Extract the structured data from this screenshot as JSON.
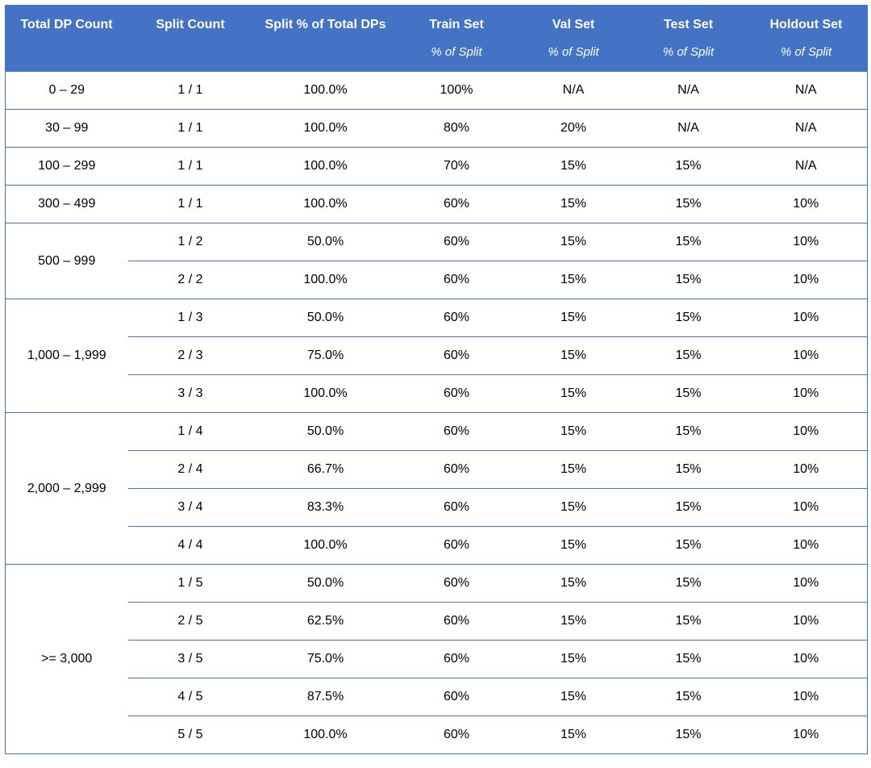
{
  "columns": [
    {
      "title": "Total DP Count",
      "sub": ""
    },
    {
      "title": "Split Count",
      "sub": ""
    },
    {
      "title": "Split % of Total DPs",
      "sub": ""
    },
    {
      "title": "Train Set",
      "sub": "% of Split"
    },
    {
      "title": "Val Set",
      "sub": "% of Split"
    },
    {
      "title": "Test Set",
      "sub": "% of Split"
    },
    {
      "title": "Holdout Set",
      "sub": "% of Split"
    }
  ],
  "groups": [
    {
      "range": "0 – 29",
      "rows": [
        {
          "split": "1 / 1",
          "pct": "100.0%",
          "train": "100%",
          "val": "N/A",
          "test": "N/A",
          "holdout": "N/A"
        }
      ]
    },
    {
      "range": "30 – 99",
      "rows": [
        {
          "split": "1 / 1",
          "pct": "100.0%",
          "train": "80%",
          "val": "20%",
          "test": "N/A",
          "holdout": "N/A"
        }
      ]
    },
    {
      "range": "100 – 299",
      "rows": [
        {
          "split": "1 / 1",
          "pct": "100.0%",
          "train": "70%",
          "val": "15%",
          "test": "15%",
          "holdout": "N/A"
        }
      ]
    },
    {
      "range": "300 – 499",
      "rows": [
        {
          "split": "1 / 1",
          "pct": "100.0%",
          "train": "60%",
          "val": "15%",
          "test": "15%",
          "holdout": "10%"
        }
      ]
    },
    {
      "range": "500 – 999",
      "rows": [
        {
          "split": "1 / 2",
          "pct": "50.0%",
          "train": "60%",
          "val": "15%",
          "test": "15%",
          "holdout": "10%"
        },
        {
          "split": "2 / 2",
          "pct": "100.0%",
          "train": "60%",
          "val": "15%",
          "test": "15%",
          "holdout": "10%"
        }
      ]
    },
    {
      "range": "1,000 – 1,999",
      "rows": [
        {
          "split": "1 / 3",
          "pct": "50.0%",
          "train": "60%",
          "val": "15%",
          "test": "15%",
          "holdout": "10%"
        },
        {
          "split": "2 / 3",
          "pct": "75.0%",
          "train": "60%",
          "val": "15%",
          "test": "15%",
          "holdout": "10%"
        },
        {
          "split": "3 / 3",
          "pct": "100.0%",
          "train": "60%",
          "val": "15%",
          "test": "15%",
          "holdout": "10%"
        }
      ]
    },
    {
      "range": "2,000 – 2,999",
      "rows": [
        {
          "split": "1 / 4",
          "pct": "50.0%",
          "train": "60%",
          "val": "15%",
          "test": "15%",
          "holdout": "10%"
        },
        {
          "split": "2 / 4",
          "pct": "66.7%",
          "train": "60%",
          "val": "15%",
          "test": "15%",
          "holdout": "10%"
        },
        {
          "split": "3 / 4",
          "pct": "83.3%",
          "train": "60%",
          "val": "15%",
          "test": "15%",
          "holdout": "10%"
        },
        {
          "split": "4 / 4",
          "pct": "100.0%",
          "train": "60%",
          "val": "15%",
          "test": "15%",
          "holdout": "10%"
        }
      ]
    },
    {
      "range": ">= 3,000",
      "rows": [
        {
          "split": "1 / 5",
          "pct": "50.0%",
          "train": "60%",
          "val": "15%",
          "test": "15%",
          "holdout": "10%"
        },
        {
          "split": "2 / 5",
          "pct": "62.5%",
          "train": "60%",
          "val": "15%",
          "test": "15%",
          "holdout": "10%"
        },
        {
          "split": "3 / 5",
          "pct": "75.0%",
          "train": "60%",
          "val": "15%",
          "test": "15%",
          "holdout": "10%"
        },
        {
          "split": "4 / 5",
          "pct": "87.5%",
          "train": "60%",
          "val": "15%",
          "test": "15%",
          "holdout": "10%"
        },
        {
          "split": "5 / 5",
          "pct": "100.0%",
          "train": "60%",
          "val": "15%",
          "test": "15%",
          "holdout": "10%"
        }
      ]
    }
  ],
  "colors": {
    "header_bg": "#4472c4",
    "header_text": "#ffffff",
    "border": "#4472c4"
  }
}
